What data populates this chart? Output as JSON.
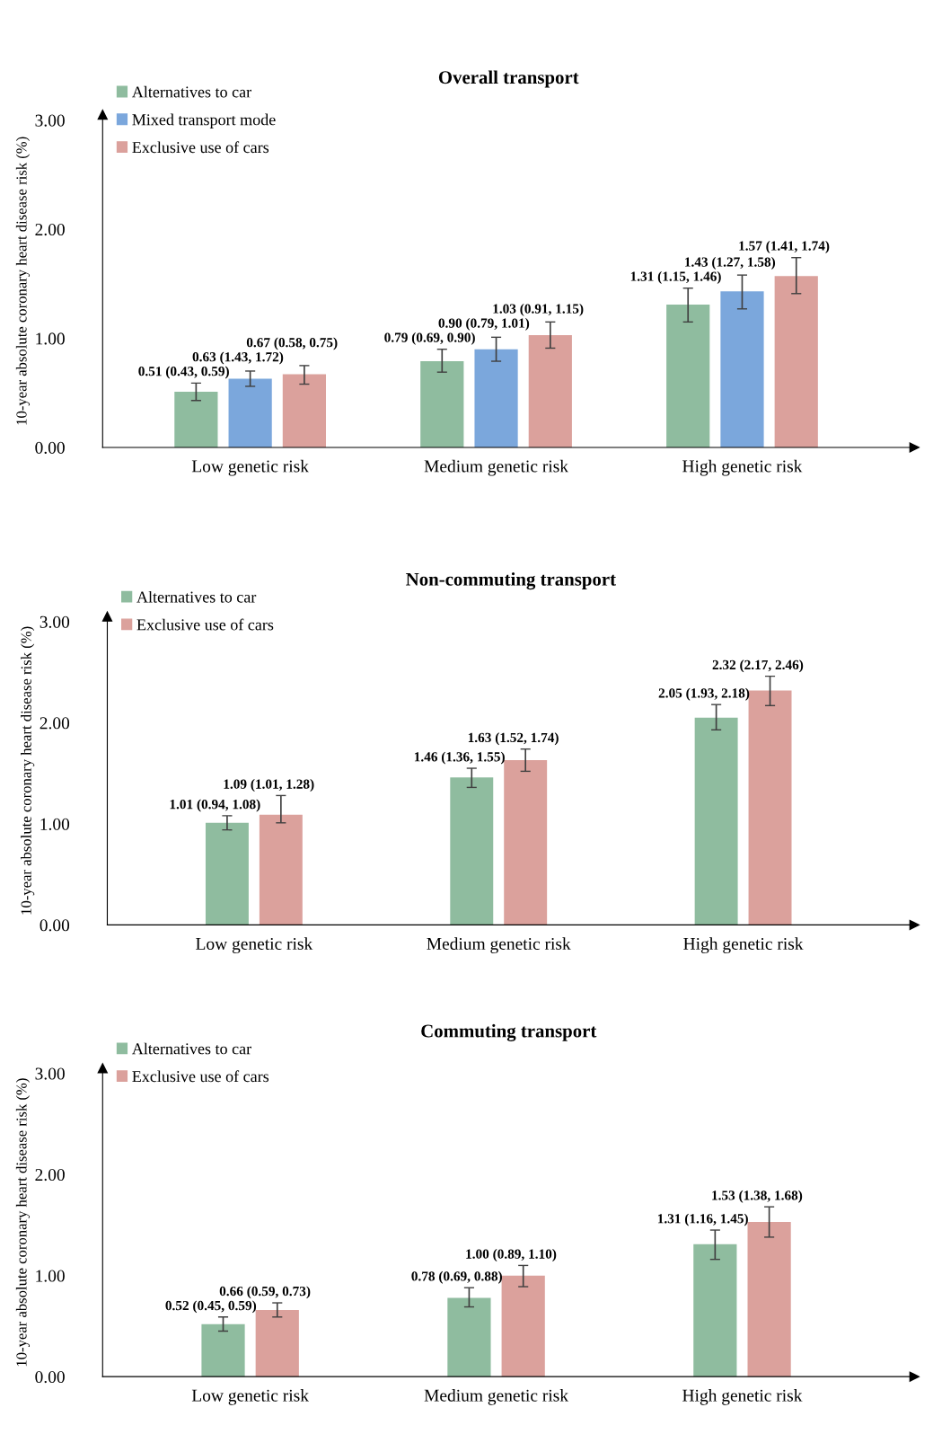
{
  "chart_data": [
    {
      "type": "bar",
      "title": "Overall transport",
      "ylabel": "10-year absolute coronary heart disease risk (%)",
      "categories": [
        "Low genetic risk",
        "Medium genetic risk",
        "High genetic risk"
      ],
      "ylim": [
        0,
        3.05
      ],
      "yticks": [
        {
          "value": 0,
          "label": "0.00"
        },
        {
          "value": 1,
          "label": "1.00"
        },
        {
          "value": 2,
          "label": "2.00"
        },
        {
          "value": 3,
          "label": "3.00"
        }
      ],
      "grid": false,
      "legend": "top left",
      "series": [
        {
          "name": "Alternatives to car",
          "color": "#8fbc9f",
          "values": [
            0.51,
            0.79,
            1.31
          ],
          "errors": [
            [
              0.43,
              0.59
            ],
            [
              0.69,
              0.9
            ],
            [
              1.15,
              1.46
            ]
          ],
          "value_labels": [
            "0.51 (0.43, 0.59)",
            "0.79 (0.69, 0.90)",
            "1.31 (1.15, 1.46)"
          ]
        },
        {
          "name": "Mixed transport mode",
          "color": "#7ba7dc",
          "values": [
            0.63,
            0.9,
            1.43
          ],
          "errors": [
            [
              0.56,
              0.7
            ],
            [
              0.79,
              1.01
            ],
            [
              1.27,
              1.58
            ]
          ],
          "value_labels": [
            "0.63 (1.43, 1.72)",
            "0.90 (0.79, 1.01)",
            "1.43 (1.27, 1.58)"
          ]
        },
        {
          "name": "Exclusive use of cars",
          "color": "#dba19c",
          "values": [
            0.67,
            1.03,
            1.57
          ],
          "errors": [
            [
              0.58,
              0.75
            ],
            [
              0.91,
              1.15
            ],
            [
              1.41,
              1.74
            ]
          ],
          "value_labels": [
            "0.67 (0.58, 0.75)",
            "1.03 (0.91, 1.15)",
            "1.57 (1.41, 1.74)"
          ]
        }
      ]
    },
    {
      "type": "bar",
      "title": "Non-commuting transport",
      "ylabel": "10-year absolute coronary heart disease risk (%)",
      "categories": [
        "Low genetic risk",
        "Medium genetic risk",
        "High genetic risk"
      ],
      "ylim": [
        0,
        3.05
      ],
      "yticks": [
        {
          "value": 0,
          "label": "0.00"
        },
        {
          "value": 1,
          "label": "1.00"
        },
        {
          "value": 2,
          "label": "2.00"
        },
        {
          "value": 3,
          "label": "3.00"
        }
      ],
      "grid": false,
      "legend": "top left",
      "series": [
        {
          "name": "Alternatives to car",
          "color": "#8fbc9f",
          "values": [
            1.01,
            1.46,
            2.05
          ],
          "errors": [
            [
              0.94,
              1.08
            ],
            [
              1.36,
              1.55
            ],
            [
              1.93,
              2.18
            ]
          ],
          "value_labels": [
            "1.01 (0.94, 1.08)",
            "1.46 (1.36, 1.55)",
            "2.05 (1.93, 2.18)"
          ]
        },
        {
          "name": "Exclusive use of cars",
          "color": "#dba19c",
          "values": [
            1.09,
            1.63,
            2.32
          ],
          "errors": [
            [
              1.01,
              1.28
            ],
            [
              1.52,
              1.74
            ],
            [
              2.17,
              2.46
            ]
          ],
          "value_labels": [
            "1.09 (1.01, 1.28)",
            "1.63 (1.52, 1.74)",
            "2.32 (2.17, 2.46)"
          ]
        }
      ]
    },
    {
      "type": "bar",
      "title": "Commuting transport",
      "ylabel": "10-year absolute coronary heart disease risk (%)",
      "categories": [
        "Low genetic risk",
        "Medium genetic risk",
        "High genetic risk"
      ],
      "ylim": [
        0,
        3.05
      ],
      "yticks": [
        {
          "value": 0,
          "label": "0.00"
        },
        {
          "value": 1,
          "label": "1.00"
        },
        {
          "value": 2,
          "label": "2.00"
        },
        {
          "value": 3,
          "label": "3.00"
        }
      ],
      "grid": false,
      "legend": "top left",
      "series": [
        {
          "name": "Alternatives to car",
          "color": "#8fbc9f",
          "values": [
            0.52,
            0.78,
            1.31
          ],
          "errors": [
            [
              0.45,
              0.59
            ],
            [
              0.69,
              0.88
            ],
            [
              1.16,
              1.45
            ]
          ],
          "value_labels": [
            "0.52 (0.45, 0.59)",
            "0.78 (0.69, 0.88)",
            "1.31 (1.16, 1.45)"
          ]
        },
        {
          "name": "Exclusive use of cars",
          "color": "#dba19c",
          "values": [
            0.66,
            1.0,
            1.53
          ],
          "errors": [
            [
              0.59,
              0.73
            ],
            [
              0.89,
              1.1
            ],
            [
              1.38,
              1.68
            ]
          ],
          "value_labels": [
            "0.66 (0.59, 0.73)",
            "1.00 (0.89, 1.10)",
            "1.53 (1.38, 1.68)"
          ]
        }
      ]
    }
  ]
}
